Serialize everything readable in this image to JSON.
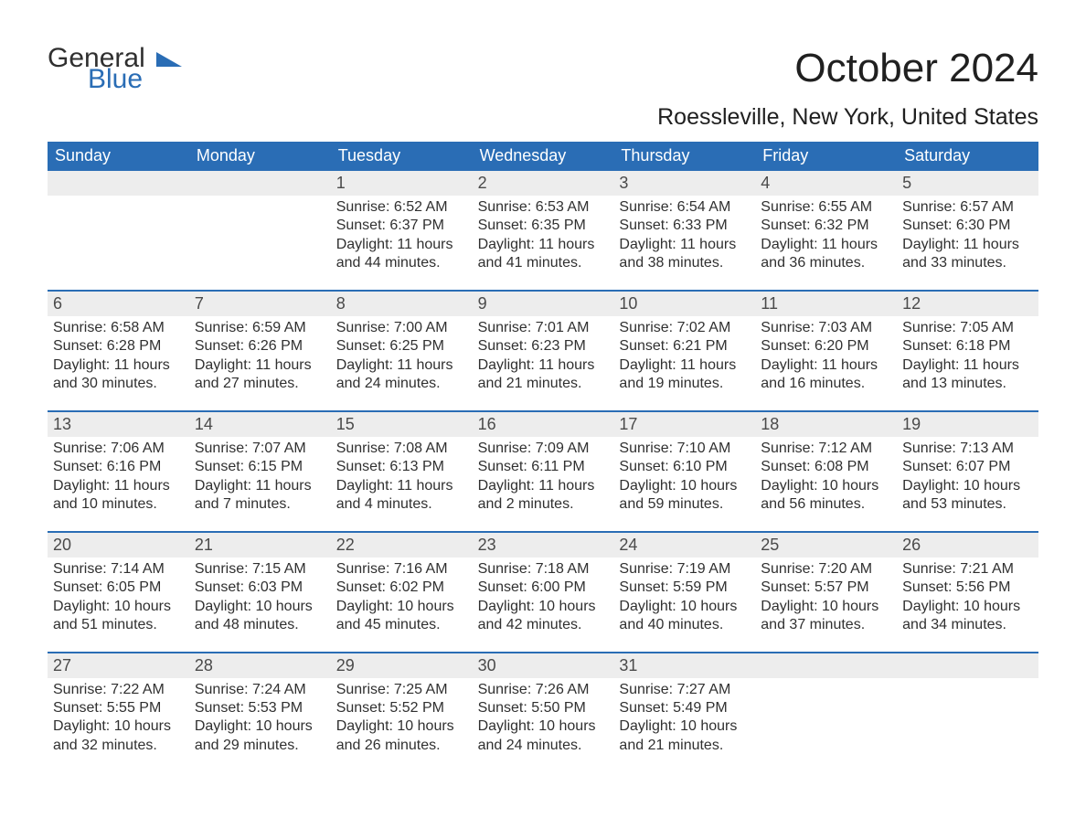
{
  "brand": {
    "word1": "General",
    "word2": "Blue",
    "logo_triangle_color": "#2a6db5"
  },
  "title": {
    "month_year": "October 2024",
    "location": "Roessleville, New York, United States"
  },
  "colors": {
    "header_bg": "#2a6db5",
    "header_fg": "#ffffff",
    "daynum_bg": "#ededed",
    "daynum_fg": "#4a4a4a",
    "body_fg": "#303030",
    "rule": "#2a6db5",
    "page_bg": "#ffffff"
  },
  "typography": {
    "title_fontsize": 44,
    "location_fontsize": 25,
    "dow_fontsize": 18,
    "daynum_fontsize": 18,
    "body_fontsize": 16
  },
  "days_of_week": [
    "Sunday",
    "Monday",
    "Tuesday",
    "Wednesday",
    "Thursday",
    "Friday",
    "Saturday"
  ],
  "weeks": [
    [
      null,
      null,
      {
        "d": "1",
        "sr": "Sunrise: 6:52 AM",
        "ss": "Sunset: 6:37 PM",
        "dl1": "Daylight: 11 hours",
        "dl2": "and 44 minutes."
      },
      {
        "d": "2",
        "sr": "Sunrise: 6:53 AM",
        "ss": "Sunset: 6:35 PM",
        "dl1": "Daylight: 11 hours",
        "dl2": "and 41 minutes."
      },
      {
        "d": "3",
        "sr": "Sunrise: 6:54 AM",
        "ss": "Sunset: 6:33 PM",
        "dl1": "Daylight: 11 hours",
        "dl2": "and 38 minutes."
      },
      {
        "d": "4",
        "sr": "Sunrise: 6:55 AM",
        "ss": "Sunset: 6:32 PM",
        "dl1": "Daylight: 11 hours",
        "dl2": "and 36 minutes."
      },
      {
        "d": "5",
        "sr": "Sunrise: 6:57 AM",
        "ss": "Sunset: 6:30 PM",
        "dl1": "Daylight: 11 hours",
        "dl2": "and 33 minutes."
      }
    ],
    [
      {
        "d": "6",
        "sr": "Sunrise: 6:58 AM",
        "ss": "Sunset: 6:28 PM",
        "dl1": "Daylight: 11 hours",
        "dl2": "and 30 minutes."
      },
      {
        "d": "7",
        "sr": "Sunrise: 6:59 AM",
        "ss": "Sunset: 6:26 PM",
        "dl1": "Daylight: 11 hours",
        "dl2": "and 27 minutes."
      },
      {
        "d": "8",
        "sr": "Sunrise: 7:00 AM",
        "ss": "Sunset: 6:25 PM",
        "dl1": "Daylight: 11 hours",
        "dl2": "and 24 minutes."
      },
      {
        "d": "9",
        "sr": "Sunrise: 7:01 AM",
        "ss": "Sunset: 6:23 PM",
        "dl1": "Daylight: 11 hours",
        "dl2": "and 21 minutes."
      },
      {
        "d": "10",
        "sr": "Sunrise: 7:02 AM",
        "ss": "Sunset: 6:21 PM",
        "dl1": "Daylight: 11 hours",
        "dl2": "and 19 minutes."
      },
      {
        "d": "11",
        "sr": "Sunrise: 7:03 AM",
        "ss": "Sunset: 6:20 PM",
        "dl1": "Daylight: 11 hours",
        "dl2": "and 16 minutes."
      },
      {
        "d": "12",
        "sr": "Sunrise: 7:05 AM",
        "ss": "Sunset: 6:18 PM",
        "dl1": "Daylight: 11 hours",
        "dl2": "and 13 minutes."
      }
    ],
    [
      {
        "d": "13",
        "sr": "Sunrise: 7:06 AM",
        "ss": "Sunset: 6:16 PM",
        "dl1": "Daylight: 11 hours",
        "dl2": "and 10 minutes."
      },
      {
        "d": "14",
        "sr": "Sunrise: 7:07 AM",
        "ss": "Sunset: 6:15 PM",
        "dl1": "Daylight: 11 hours",
        "dl2": "and 7 minutes."
      },
      {
        "d": "15",
        "sr": "Sunrise: 7:08 AM",
        "ss": "Sunset: 6:13 PM",
        "dl1": "Daylight: 11 hours",
        "dl2": "and 4 minutes."
      },
      {
        "d": "16",
        "sr": "Sunrise: 7:09 AM",
        "ss": "Sunset: 6:11 PM",
        "dl1": "Daylight: 11 hours",
        "dl2": "and 2 minutes."
      },
      {
        "d": "17",
        "sr": "Sunrise: 7:10 AM",
        "ss": "Sunset: 6:10 PM",
        "dl1": "Daylight: 10 hours",
        "dl2": "and 59 minutes."
      },
      {
        "d": "18",
        "sr": "Sunrise: 7:12 AM",
        "ss": "Sunset: 6:08 PM",
        "dl1": "Daylight: 10 hours",
        "dl2": "and 56 minutes."
      },
      {
        "d": "19",
        "sr": "Sunrise: 7:13 AM",
        "ss": "Sunset: 6:07 PM",
        "dl1": "Daylight: 10 hours",
        "dl2": "and 53 minutes."
      }
    ],
    [
      {
        "d": "20",
        "sr": "Sunrise: 7:14 AM",
        "ss": "Sunset: 6:05 PM",
        "dl1": "Daylight: 10 hours",
        "dl2": "and 51 minutes."
      },
      {
        "d": "21",
        "sr": "Sunrise: 7:15 AM",
        "ss": "Sunset: 6:03 PM",
        "dl1": "Daylight: 10 hours",
        "dl2": "and 48 minutes."
      },
      {
        "d": "22",
        "sr": "Sunrise: 7:16 AM",
        "ss": "Sunset: 6:02 PM",
        "dl1": "Daylight: 10 hours",
        "dl2": "and 45 minutes."
      },
      {
        "d": "23",
        "sr": "Sunrise: 7:18 AM",
        "ss": "Sunset: 6:00 PM",
        "dl1": "Daylight: 10 hours",
        "dl2": "and 42 minutes."
      },
      {
        "d": "24",
        "sr": "Sunrise: 7:19 AM",
        "ss": "Sunset: 5:59 PM",
        "dl1": "Daylight: 10 hours",
        "dl2": "and 40 minutes."
      },
      {
        "d": "25",
        "sr": "Sunrise: 7:20 AM",
        "ss": "Sunset: 5:57 PM",
        "dl1": "Daylight: 10 hours",
        "dl2": "and 37 minutes."
      },
      {
        "d": "26",
        "sr": "Sunrise: 7:21 AM",
        "ss": "Sunset: 5:56 PM",
        "dl1": "Daylight: 10 hours",
        "dl2": "and 34 minutes."
      }
    ],
    [
      {
        "d": "27",
        "sr": "Sunrise: 7:22 AM",
        "ss": "Sunset: 5:55 PM",
        "dl1": "Daylight: 10 hours",
        "dl2": "and 32 minutes."
      },
      {
        "d": "28",
        "sr": "Sunrise: 7:24 AM",
        "ss": "Sunset: 5:53 PM",
        "dl1": "Daylight: 10 hours",
        "dl2": "and 29 minutes."
      },
      {
        "d": "29",
        "sr": "Sunrise: 7:25 AM",
        "ss": "Sunset: 5:52 PM",
        "dl1": "Daylight: 10 hours",
        "dl2": "and 26 minutes."
      },
      {
        "d": "30",
        "sr": "Sunrise: 7:26 AM",
        "ss": "Sunset: 5:50 PM",
        "dl1": "Daylight: 10 hours",
        "dl2": "and 24 minutes."
      },
      {
        "d": "31",
        "sr": "Sunrise: 7:27 AM",
        "ss": "Sunset: 5:49 PM",
        "dl1": "Daylight: 10 hours",
        "dl2": "and 21 minutes."
      },
      null,
      null
    ]
  ]
}
